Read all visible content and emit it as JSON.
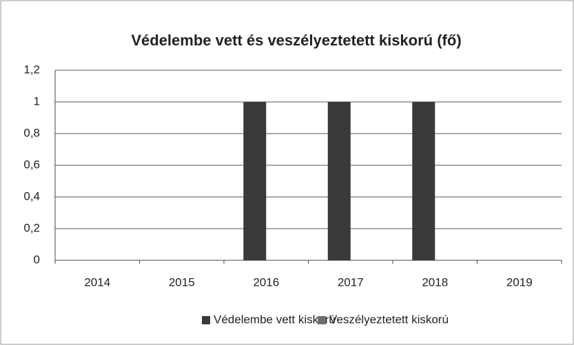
{
  "chart_data": {
    "type": "bar",
    "title": "Védelembe vett és veszélyeztetett kiskorú (fő)",
    "categories": [
      "2014",
      "2015",
      "2016",
      "2017",
      "2018",
      "2019"
    ],
    "series": [
      {
        "name": "Védelembe vett kiskorú",
        "color": "#3a3a3a",
        "values": [
          0,
          0,
          1,
          1,
          1,
          0
        ]
      },
      {
        "name": "Veszélyeztetett kiskorú",
        "color": "#707070",
        "values": [
          0,
          0,
          0,
          0,
          0,
          0
        ]
      }
    ],
    "ylim": [
      0,
      1.2
    ],
    "yticks": [
      0,
      {
        "value": 0.2,
        "label": "0,2"
      },
      {
        "value": 0.4,
        "label": "0,4"
      },
      {
        "value": 0.6,
        "label": "0,6"
      },
      {
        "value": 0.8,
        "label": "0,8"
      },
      1,
      {
        "value": 1.2,
        "label": "1,2"
      }
    ],
    "grid": true,
    "legend": "bottom"
  }
}
